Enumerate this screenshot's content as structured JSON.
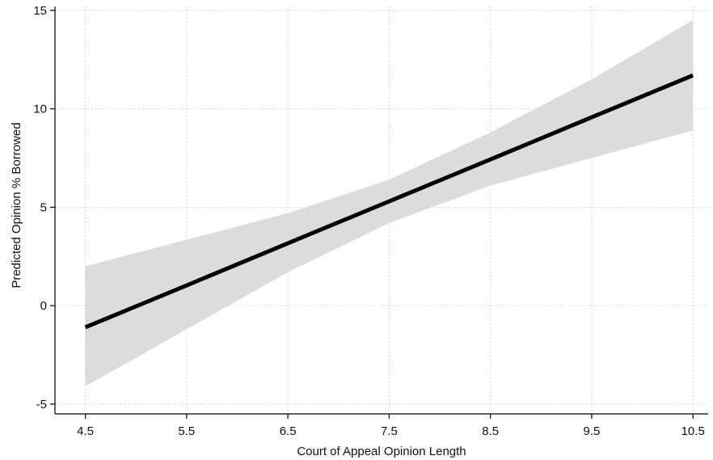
{
  "chart_data": {
    "type": "line",
    "title": "",
    "xlabel": "Court of Appeal Opinion Length",
    "ylabel": "Predicted Opinion % Borrowed",
    "xlim": [
      4.5,
      10.5
    ],
    "ylim": [
      -5.5,
      15.2
    ],
    "x_ticks": [
      4.5,
      5.5,
      6.5,
      7.5,
      8.5,
      9.5,
      10.5
    ],
    "x_tick_labels": [
      "4.5",
      "5.5",
      "6.5",
      "7.5",
      "8.5",
      "9.5",
      "10.5"
    ],
    "y_ticks": [
      -5,
      0,
      5,
      10,
      15
    ],
    "y_tick_labels": [
      "-5",
      "0",
      "5",
      "10",
      "15"
    ],
    "grid": true,
    "series": [
      {
        "x": [
          4.5,
          5.5,
          6.5,
          7.5,
          8.5,
          9.5,
          10.5
        ],
        "y": [
          -1.1,
          1.03,
          3.17,
          5.3,
          7.43,
          9.57,
          11.7
        ],
        "ci_lower": [
          -4.1,
          -1.2,
          1.7,
          4.2,
          6.1,
          7.5,
          8.9
        ],
        "ci_upper": [
          2.0,
          3.35,
          4.7,
          6.4,
          8.8,
          11.5,
          14.5
        ]
      }
    ],
    "colors": {
      "line": "#000000",
      "ci_band": "#dcdcdc",
      "grid": "#c8c8c8",
      "axis": "#000000"
    }
  }
}
